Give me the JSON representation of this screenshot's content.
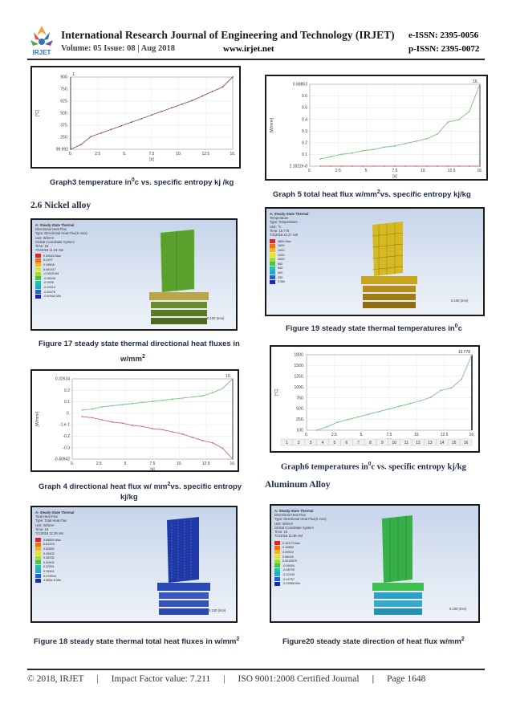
{
  "header": {
    "logo_text": "IRJET",
    "journal_title": "International Research Journal of Engineering and Technology (IRJET)",
    "eissn": "e-ISSN: 2395-0056",
    "volume": "Volume: 05 Issue: 08 | Aug 2018",
    "website": "www.irjet.net",
    "pissn": "p-ISSN: 2395-0072"
  },
  "sections": {
    "nickel": "2.6 Nickel alloy",
    "aluminum": "Aluminum Alloy"
  },
  "captions": {
    "graph3": "Graph3 temperature in",
    "graph3_sup": "0",
    "graph3_tail": "c vs. specific entropy kj /kg",
    "graph5": "Graph 5 total heat flux w/mm",
    "graph5_sup": "2",
    "graph5_tail": "vs. specific entropy kj/kg",
    "figure17_line1": "Figure 17 steady state thermal directional heat fluxes in",
    "figure17_line2": "w/mm",
    "figure17_sup": "2",
    "figure19": "Figure 19 steady state thermal temperatures in",
    "figure19_sup": "0",
    "figure19_tail": "c",
    "graph4_line1": "Graph 4 directional heat flux w/ mm",
    "graph4_sup": "2",
    "graph4_tail": "vs. specific entropy",
    "graph4_line2": "kj/kg",
    "graph6": "Graph6 temperatures in",
    "graph6_sup": "0",
    "graph6_tail": "c vs. specific entropy kj/kg",
    "figure18": "Figure 18 steady state thermal total heat fluxes in w/mm",
    "figure18_sup": "2",
    "figure20": "Figure20 steady state direction of heat flux w/mm",
    "figure20_sup": "2"
  },
  "panels": {
    "fig17": {
      "title": "A: Steady-State Thermal",
      "lines": [
        "Directional Heat Flux",
        "Type: Directional Heat Flux(X Axis)",
        "Unit: W/mm²",
        "Global Coordinate System",
        "Time: 16",
        "7/1/2018 11:24 AM"
      ],
      "legend": [
        "0.32634 Max",
        "0.2497",
        "0.16506",
        "0.081417",
        "-0.0002159",
        "-0.08345",
        "-0.1605",
        "-0.24014",
        "-0.32478",
        "-0.40942 Min"
      ],
      "scale": "0.100 (mm)"
    },
    "fig19": {
      "title": "A: Steady-State Thermal",
      "lines": [
        "Temperature",
        "Type: Temperature",
        "Unit: °C",
        "Time: 15.778",
        "7/1/2018 11:27 AM"
      ],
      "legend": [
        "1800 Max",
        "1600",
        "1400",
        "1200",
        "1000",
        "800",
        "600",
        "400",
        "200",
        "0 Min"
      ],
      "scale": "0.100 (mm)"
    },
    "fig18": {
      "title": "A: Steady-State Thermal",
      "lines": [
        "Total Heat Flux",
        "Type: Total Heat Flux",
        "Unit: W/mm²",
        "Time: 16",
        "7/1/2018 11:29 AM"
      ],
      "legend": [
        "0.68853 Max",
        "0.61203",
        "0.53552",
        "0.45902",
        "0.38252",
        "0.30601",
        "0.22951",
        "0.15301",
        "0.076504",
        "4.985e-8 Min"
      ],
      "scale": "0.100 (mm)"
    },
    "fig20": {
      "title": "A: Steady-State Thermal",
      "lines": [
        "Directional Heat Flux",
        "Type: Directional Heat Flux(X Axis)",
        "Unit: W/mm²",
        "Global Coordinate System",
        "Time: 16",
        "7/1/2018 11:36 AM"
      ],
      "legend": [
        "0.16173 Max",
        "0.12883",
        "0.09519",
        "0.06026",
        "0.0018979",
        "-0.06004",
        "-0.08735",
        "-0.12105",
        "-0.14757",
        "-0.29368 Min"
      ],
      "scale": "0.100 (mm)"
    }
  },
  "chart_data": [
    {
      "id": "graph3",
      "type": "line",
      "xlabel": "[s]",
      "ylabel": "[°C]",
      "x_ticks": [
        "0.",
        "2.5",
        "5.",
        "7.5",
        "10.",
        "12.5",
        "16."
      ],
      "y_ticks": [
        "99.992",
        "250.",
        "375.",
        "500.",
        "625.",
        "750.",
        "900."
      ],
      "xlim": [
        0,
        16
      ],
      "ylim": [
        99.992,
        900
      ],
      "top_label": "1.",
      "series": [
        {
          "x": [
            0,
            1,
            2,
            3,
            4,
            5,
            6,
            7,
            8,
            9,
            10,
            11,
            12,
            13,
            14,
            15,
            16
          ],
          "y": [
            99.992,
            150,
            240,
            280,
            320,
            360,
            400,
            440,
            480,
            520,
            560,
            600,
            640,
            690,
            740,
            790,
            900
          ]
        }
      ]
    },
    {
      "id": "graph5",
      "type": "line",
      "xlabel": "[s]",
      "ylabel": "[W/mm²]",
      "x_ticks": [
        "0.",
        "2.5",
        "5.",
        "7.5",
        "10.",
        "12.5",
        "16."
      ],
      "y_ticks": [
        "2.1822e-8",
        "0.1",
        "0.2",
        "0.3",
        "0.4",
        "0.5",
        "0.6",
        "0.68853"
      ],
      "xlim": [
        0,
        16
      ],
      "ylim": [
        0,
        0.68853
      ],
      "top_label": "16.",
      "series": [
        {
          "x": [
            1,
            2,
            3,
            4,
            5,
            6,
            7,
            8,
            9,
            10,
            11,
            12,
            13,
            14,
            15,
            16
          ],
          "y": [
            0.06,
            0.08,
            0.1,
            0.11,
            0.13,
            0.14,
            0.16,
            0.17,
            0.19,
            0.21,
            0.23,
            0.27,
            0.37,
            0.39,
            0.46,
            0.68853
          ]
        },
        {
          "x": [
            1,
            2,
            3,
            4,
            5,
            6,
            7,
            8,
            9,
            10,
            11,
            12,
            13,
            14,
            15,
            16
          ],
          "y": [
            0,
            0,
            0,
            0,
            0,
            0,
            0,
            0,
            0,
            0,
            0,
            0,
            0,
            0,
            0,
            0
          ]
        }
      ]
    },
    {
      "id": "graph4",
      "type": "line",
      "xlabel": "[s]",
      "ylabel": "[W/mm²]",
      "x_ticks": [
        "0.",
        "2.5",
        "5.",
        "7.5",
        "10.",
        "12.5",
        "16."
      ],
      "y_ticks": [
        "-0.40942",
        "-0.3",
        "-0.2",
        "-1.e-1",
        "0.",
        "0.1",
        "0.2",
        "0.32634"
      ],
      "xlim": [
        0,
        16
      ],
      "ylim": [
        -0.40942,
        0.32634
      ],
      "top_label": "16.",
      "series": [
        {
          "x": [
            1,
            2,
            3,
            4,
            5,
            6,
            7,
            8,
            9,
            10,
            11,
            12,
            13,
            14,
            15,
            16
          ],
          "y": [
            0.04,
            0.05,
            0.07,
            0.08,
            0.09,
            0.1,
            0.11,
            0.12,
            0.13,
            0.14,
            0.15,
            0.16,
            0.17,
            0.2,
            0.24,
            0.32634
          ]
        },
        {
          "x": [
            1,
            2,
            3,
            4,
            5,
            6,
            7,
            8,
            9,
            10,
            11,
            12,
            13,
            14,
            15,
            16
          ],
          "y": [
            -0.02,
            -0.03,
            -0.05,
            -0.07,
            -0.08,
            -0.1,
            -0.11,
            -0.13,
            -0.14,
            -0.16,
            -0.18,
            -0.21,
            -0.24,
            -0.26,
            -0.31,
            -0.40942
          ]
        }
      ]
    },
    {
      "id": "graph6",
      "type": "line",
      "xlabel": "[s]",
      "ylabel": "[°C]",
      "x_ticks": [
        "0.",
        "2.5",
        "5.",
        "7.5",
        "10.",
        "12.5",
        "16."
      ],
      "y_ticks": [
        "100.",
        "250.",
        "500.",
        "750.",
        "1000.",
        "1250.",
        "1500.",
        "1800."
      ],
      "xlim": [
        0,
        16
      ],
      "ylim": [
        100,
        1800
      ],
      "top_label": "15.778",
      "table_cells": [
        "1",
        "2",
        "3",
        "4",
        "5",
        "6",
        "7",
        "8",
        "9",
        "10",
        "11",
        "12",
        "13",
        "14",
        "15",
        "16"
      ],
      "series": [
        {
          "x": [
            1,
            2,
            3,
            4,
            5,
            6,
            7,
            8,
            9,
            10,
            11,
            12,
            13,
            14,
            15,
            16
          ],
          "y": [
            100,
            180,
            280,
            340,
            400,
            460,
            520,
            580,
            640,
            700,
            760,
            840,
            1000,
            1050,
            1250,
            1800
          ]
        }
      ]
    }
  ],
  "footer": {
    "copyright": "© 2018, IRJET",
    "impact": "Impact Factor value: 7.211",
    "iso": "ISO 9001:2008 Certified Journal",
    "page": "Page 1648"
  },
  "colors": {
    "series_green": "#79c378",
    "series_red": "#c96a7a",
    "series_dark": "#8a4a5a",
    "caption": "#1d2b44"
  }
}
